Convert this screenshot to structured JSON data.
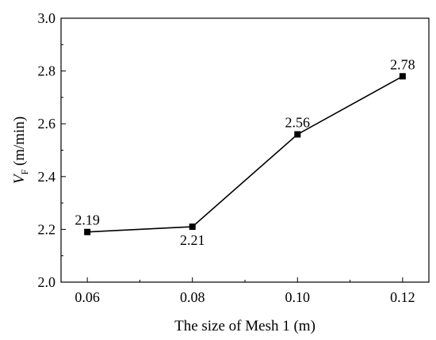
{
  "chart_data": {
    "type": "line",
    "x": [
      0.06,
      0.08,
      0.1,
      0.12
    ],
    "values": [
      2.19,
      2.21,
      2.56,
      2.78
    ],
    "point_labels": [
      "2.19",
      "2.21",
      "2.56",
      "2.78"
    ],
    "point_label_side": [
      "above",
      "below",
      "above",
      "above"
    ],
    "xlabel": "The size of Mesh 1 (m)",
    "ylabel_main": "V",
    "ylabel_sub": "F",
    "ylabel_unit": " (m/min)",
    "xlim": [
      0.055,
      0.125
    ],
    "ylim": [
      2.0,
      3.0
    ],
    "xticks": [
      0.06,
      0.08,
      0.1,
      0.12
    ],
    "xtick_labels": [
      "0.06",
      "0.08",
      "0.10",
      "0.12"
    ],
    "yticks": [
      2.0,
      2.2,
      2.4,
      2.6,
      2.8,
      3.0
    ],
    "ytick_labels": [
      "2.0",
      "2.2",
      "2.4",
      "2.6",
      "2.8",
      "3.0"
    ],
    "grid": false,
    "line_color": "#000000",
    "marker": "square"
  }
}
